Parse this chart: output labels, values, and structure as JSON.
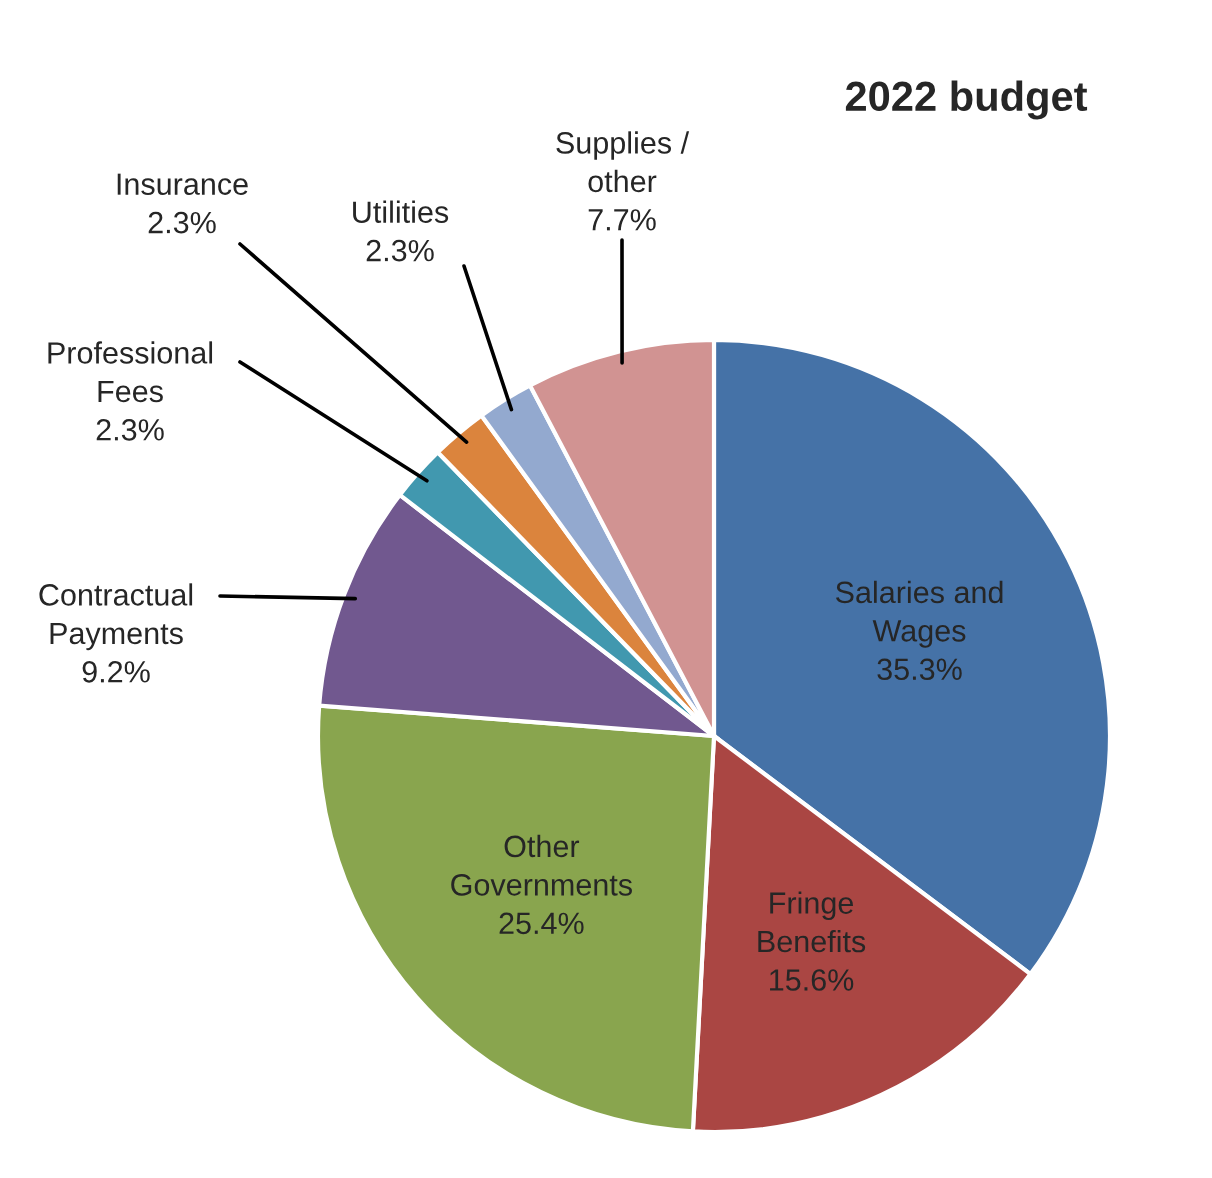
{
  "chart_data": {
    "type": "pie",
    "title": "2022 budget",
    "categories": [
      "Salaries and\nWages",
      "Fringe\nBenefits",
      "Other\nGovernments",
      "Contractual\nPayments",
      "Professional\nFees",
      "Insurance",
      "Utilities",
      "Supplies /\nother"
    ],
    "values": [
      35.3,
      15.6,
      25.4,
      9.2,
      2.3,
      2.3,
      2.3,
      7.7
    ],
    "value_labels": [
      "35.3%",
      "15.6%",
      "25.4%",
      "9.2%",
      "2.3%",
      "2.3%",
      "2.3%",
      "7.7%"
    ],
    "colors": [
      "#4572a7",
      "#aa4643",
      "#89a54e",
      "#71588f",
      "#4198af",
      "#db843d",
      "#93a9cf",
      "#d19392"
    ],
    "legend": false
  }
}
